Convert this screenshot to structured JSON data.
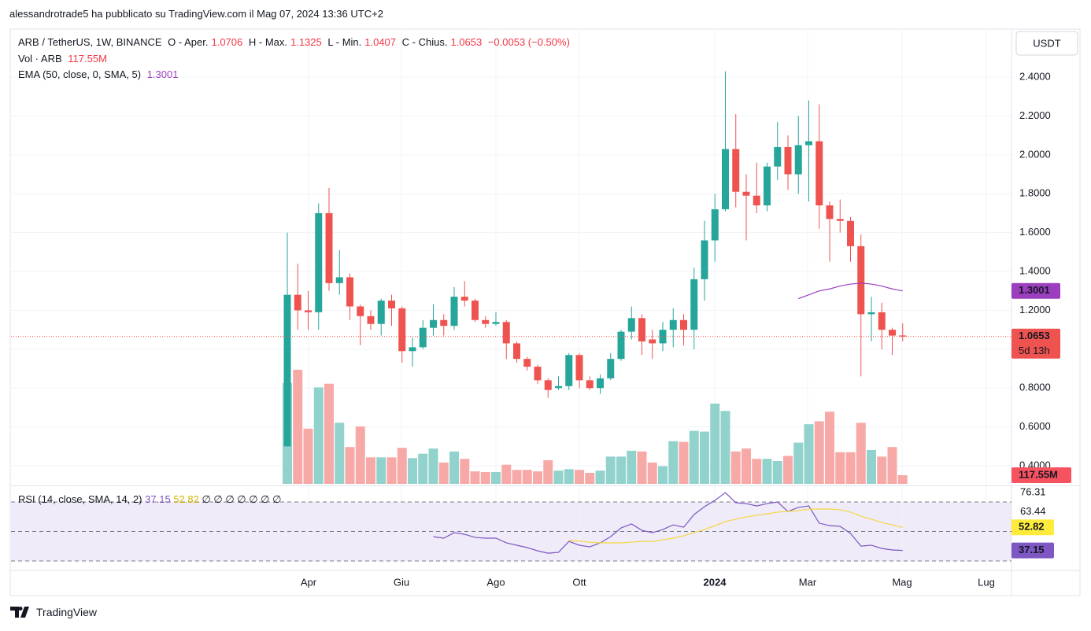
{
  "header": {
    "publisher": "alessandrotrade5 ha pubblicato su TradingView.com il Mag 07, 2024 13:36 UTC+2"
  },
  "footer": {
    "brand": "TradingView"
  },
  "chart_data": {
    "type": "candlestick",
    "title": "ARB / TetherUS, 1W, BINANCE",
    "ohlc_labels": [
      "O - Aper.",
      "H - Max.",
      "L - Min.",
      "C - Chius."
    ],
    "change_label": "−0.0053 (−0.50%)",
    "countdown": "5d 13h",
    "currency": "USDT",
    "x_labels": [
      "Apr",
      "Giu",
      "Ago",
      "Ott",
      "2024",
      "Mar",
      "Mag",
      "Lug"
    ],
    "colors": {
      "up": "#26a69a",
      "down": "#ef5350",
      "up_volume": "#92d2cc",
      "down_volume": "#f7a9a7"
    },
    "grid": true,
    "ylim": [
      0.307,
      2.647
    ],
    "yticks": [
      {
        "value": 0.4,
        "label": "0.4000"
      },
      {
        "value": 0.6,
        "label": "0.6000"
      },
      {
        "value": 0.8,
        "label": "0.8000"
      },
      {
        "value": 1.0,
        "label": "1.0000"
      },
      {
        "value": 1.2,
        "label": "1.2000"
      },
      {
        "value": 1.4,
        "label": "1.4000"
      },
      {
        "value": 1.6,
        "label": "1.6000"
      },
      {
        "value": 1.8,
        "label": "1.8000"
      },
      {
        "value": 2.0,
        "label": "2.0000"
      },
      {
        "value": 2.2,
        "label": "2.2000"
      },
      {
        "value": 2.4,
        "label": "2.4000"
      }
    ],
    "open": [
      0.5,
      1.28,
      1.2,
      1.19,
      1.7,
      1.34,
      1.37,
      1.22,
      1.17,
      1.13,
      1.25,
      1.21,
      0.99,
      1.01,
      1.11,
      1.15,
      1.12,
      1.27,
      1.25,
      1.15,
      1.13,
      1.14,
      1.03,
      0.95,
      0.91,
      0.84,
      0.8,
      0.81,
      0.97,
      0.84,
      0.8,
      0.85,
      0.95,
      1.09,
      1.16,
      1.05,
      1.03,
      1.1,
      1.15,
      1.1,
      1.36,
      1.56,
      1.72,
      2.03,
      1.81,
      1.79,
      1.74,
      1.94,
      2.04,
      1.9,
      2.05,
      2.07,
      1.74,
      1.67,
      1.66,
      1.53,
      1.18,
      1.19,
      1.1,
      1.0706
    ],
    "high": [
      1.6,
      1.44,
      1.3,
      1.75,
      1.83,
      1.51,
      1.39,
      1.23,
      1.2,
      1.26,
      1.28,
      1.22,
      1.06,
      1.15,
      1.23,
      1.18,
      1.32,
      1.35,
      1.26,
      1.17,
      1.19,
      1.15,
      1.04,
      0.96,
      0.92,
      0.85,
      0.86,
      0.98,
      0.98,
      0.86,
      0.87,
      0.98,
      1.1,
      1.22,
      1.18,
      1.1,
      1.14,
      1.21,
      1.18,
      1.42,
      1.66,
      1.8,
      2.43,
      2.21,
      1.9,
      1.96,
      1.96,
      2.17,
      2.1,
      2.2,
      2.28,
      2.26,
      1.76,
      1.77,
      1.68,
      1.59,
      1.27,
      1.24,
      1.11,
      1.1325
    ],
    "low": [
      0.5,
      1.1,
      1.1,
      1.1,
      1.3,
      1.28,
      1.15,
      1.02,
      1.1,
      1.07,
      1.12,
      0.93,
      0.91,
      1.0,
      1.07,
      1.07,
      1.1,
      1.22,
      1.14,
      1.11,
      1.12,
      0.95,
      0.93,
      0.89,
      0.82,
      0.75,
      0.79,
      0.79,
      0.8,
      0.79,
      0.77,
      0.84,
      0.94,
      1.05,
      0.97,
      0.95,
      0.99,
      1.01,
      1.02,
      1.0,
      1.25,
      1.45,
      1.71,
      1.73,
      1.56,
      1.7,
      1.71,
      1.87,
      1.82,
      1.8,
      1.76,
      1.62,
      1.45,
      1.6,
      1.45,
      0.86,
      1.04,
      1.0,
      0.97,
      1.0407
    ],
    "close": [
      1.28,
      1.2,
      1.19,
      1.7,
      1.34,
      1.37,
      1.22,
      1.17,
      1.13,
      1.25,
      1.21,
      0.99,
      1.01,
      1.11,
      1.15,
      1.12,
      1.27,
      1.25,
      1.15,
      1.13,
      1.14,
      1.03,
      0.95,
      0.91,
      0.84,
      0.79,
      0.81,
      0.97,
      0.84,
      0.8,
      0.85,
      0.95,
      1.09,
      1.16,
      1.04,
      1.03,
      1.1,
      1.15,
      1.1,
      1.36,
      1.56,
      1.72,
      2.03,
      1.81,
      1.79,
      1.74,
      1.94,
      2.04,
      1.9,
      2.05,
      2.07,
      1.74,
      1.67,
      1.66,
      1.53,
      1.18,
      1.19,
      1.1,
      1.07,
      1.0653
    ],
    "volume": {
      "name": "Vol · ARB",
      "values": [
        1370,
        1550,
        750,
        1310,
        1360,
        830,
        500,
        780,
        360,
        360,
        360,
        490,
        350,
        410,
        480,
        290,
        440,
        340,
        170,
        160,
        160,
        260,
        190,
        190,
        170,
        320,
        180,
        200,
        190,
        150,
        180,
        370,
        370,
        450,
        440,
        290,
        240,
        580,
        570,
        720,
        710,
        1090,
        990,
        440,
        480,
        340,
        340,
        310,
        380,
        560,
        810,
        850,
        980,
        430,
        430,
        830,
        460,
        370,
        500,
        117.55
      ],
      "value_labels": [
        null,
        null,
        null,
        null,
        null,
        null,
        null,
        null,
        null,
        null,
        null,
        null,
        null,
        null,
        null,
        null,
        null,
        null,
        null,
        null,
        null,
        null,
        null,
        null,
        null,
        null,
        null,
        null,
        null,
        null,
        null,
        null,
        null,
        null,
        null,
        null,
        null,
        null,
        null,
        null,
        null,
        null,
        null,
        null,
        null,
        null,
        null,
        null,
        null,
        null,
        null,
        null,
        null,
        null,
        null,
        null,
        null,
        null,
        null,
        "117.55M"
      ]
    },
    "ema": {
      "name": "EMA (50, close, 0, SMA, 5)",
      "color": "#9c3fbf",
      "values": [
        null,
        null,
        null,
        null,
        null,
        null,
        null,
        null,
        null,
        null,
        null,
        null,
        null,
        null,
        null,
        null,
        null,
        null,
        null,
        null,
        null,
        null,
        null,
        null,
        null,
        null,
        null,
        null,
        null,
        null,
        null,
        null,
        null,
        null,
        null,
        null,
        null,
        null,
        null,
        null,
        null,
        null,
        null,
        null,
        null,
        null,
        null,
        null,
        null,
        1.26,
        1.28,
        1.3,
        1.31,
        1.325,
        1.335,
        1.34,
        1.335,
        1.325,
        1.31,
        1.3001
      ]
    },
    "rsi": {
      "name": "RSI (14, close, SMA, 14, 2)",
      "extra": "∅ ∅ ∅ ∅ ∅ ∅ ∅",
      "ylim": [
        26.3,
        79.6
      ],
      "yticks": [
        76.31,
        63.44
      ],
      "levels": [
        70,
        50,
        30
      ],
      "band_color": "#efebf8",
      "series": [
        {
          "name": "RSI",
          "color": "#7e57c2",
          "values": [
            null,
            null,
            null,
            null,
            null,
            null,
            null,
            null,
            null,
            null,
            null,
            null,
            null,
            null,
            46.5,
            45.5,
            49.2,
            48.1,
            46,
            45.5,
            45.5,
            42.3,
            40.7,
            39.1,
            36.9,
            35.3,
            35.9,
            43.3,
            40.7,
            39.6,
            42.3,
            46.5,
            52.4,
            55.1,
            50.8,
            49.2,
            51.3,
            54.5,
            52.9,
            61.5,
            66.8,
            71.1,
            76.31,
            69.5,
            68.9,
            67.3,
            68.9,
            70,
            63.6,
            66.3,
            67.3,
            55.6,
            54,
            53.5,
            48.7,
            40.1,
            40.7,
            38.5,
            37.5,
            37.15
          ]
        },
        {
          "name": "RSI MA",
          "color": "#f5d742",
          "values": [
            null,
            null,
            null,
            null,
            null,
            null,
            null,
            null,
            null,
            null,
            null,
            null,
            null,
            null,
            null,
            null,
            null,
            null,
            null,
            null,
            null,
            null,
            null,
            null,
            null,
            null,
            null,
            43.9,
            43.5,
            42.8,
            42.3,
            42.3,
            42.3,
            42.8,
            43.3,
            43.3,
            44.4,
            45.5,
            47.1,
            49.2,
            51.3,
            54,
            56.7,
            58.3,
            59.9,
            60.9,
            62,
            63.1,
            63.6,
            64.1,
            65.2,
            65.2,
            65.2,
            64.7,
            63.1,
            60.4,
            58.3,
            56.1,
            54.5,
            52.82
          ]
        }
      ]
    }
  }
}
